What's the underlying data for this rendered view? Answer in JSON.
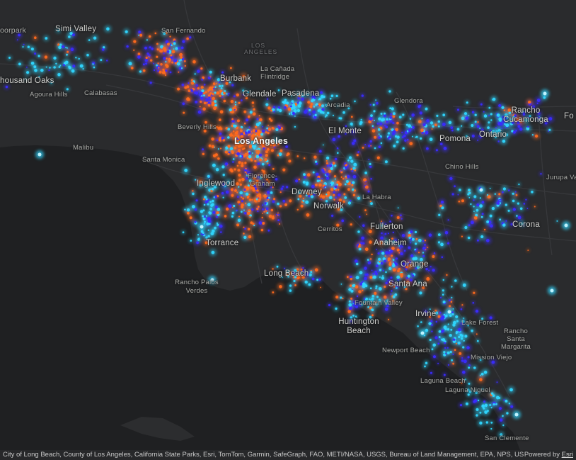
{
  "map": {
    "colors": {
      "ocean": "#1f2022",
      "land": "#2a2b2d",
      "roads": "#3a3b3e",
      "dot_cyan": "#2fd6ff",
      "dot_blue": "#3a2bff",
      "dot_orange": "#ff6a1e"
    },
    "labels": [
      {
        "id": "moorpark",
        "text": "oorpark"
      },
      {
        "id": "simi-valley",
        "text": "Simi Valley"
      },
      {
        "id": "san-fernando",
        "text": "San Fernando"
      },
      {
        "id": "los-angeles-district",
        "text": "LOS ANGELES"
      },
      {
        "id": "thousand-oaks",
        "text": "housand Oaks"
      },
      {
        "id": "burbank",
        "text": "Burbank"
      },
      {
        "id": "la-canada-flintridge",
        "text": "La Cañada Flintridge"
      },
      {
        "id": "agoura-hills",
        "text": "Agoura Hills"
      },
      {
        "id": "calabasas",
        "text": "Calabasas"
      },
      {
        "id": "glendale",
        "text": "Glendale"
      },
      {
        "id": "pasadena",
        "text": "Pasadena"
      },
      {
        "id": "glendora",
        "text": "Glendora"
      },
      {
        "id": "arcadia",
        "text": "Arcadia"
      },
      {
        "id": "rancho-cucamonga",
        "text": "Rancho Cucamonga"
      },
      {
        "id": "fontana",
        "text": "Fo"
      },
      {
        "id": "beverly-hills",
        "text": "Beverly Hills"
      },
      {
        "id": "los-angeles",
        "text": "Los Angeles"
      },
      {
        "id": "el-monte",
        "text": "El Monte"
      },
      {
        "id": "ontario",
        "text": "Ontario"
      },
      {
        "id": "pomona",
        "text": "Pomona"
      },
      {
        "id": "malibu",
        "text": "Malibu"
      },
      {
        "id": "santa-monica",
        "text": "Santa Monica"
      },
      {
        "id": "florence-graham",
        "text": "Florence-Graham"
      },
      {
        "id": "chino-hills",
        "text": "Chino Hills"
      },
      {
        "id": "jurupa-valley",
        "text": "Jurupa Va"
      },
      {
        "id": "inglewood",
        "text": "Inglewood"
      },
      {
        "id": "downey",
        "text": "Downey"
      },
      {
        "id": "la-habra",
        "text": "La Habra"
      },
      {
        "id": "norwalk",
        "text": "Norwalk"
      },
      {
        "id": "fullerton",
        "text": "Fullerton"
      },
      {
        "id": "cerritos",
        "text": "Cerritos"
      },
      {
        "id": "corona",
        "text": "Corona"
      },
      {
        "id": "torrance",
        "text": "Torrance"
      },
      {
        "id": "anaheim",
        "text": "Anaheim"
      },
      {
        "id": "orange",
        "text": "Orange"
      },
      {
        "id": "long-beach",
        "text": "Long Beach"
      },
      {
        "id": "rancho-palos-verdes",
        "text": "Rancho Palos Verdes"
      },
      {
        "id": "santa-ana",
        "text": "Santa Ana"
      },
      {
        "id": "fountain-valley",
        "text": "Fountain Valley"
      },
      {
        "id": "irvine",
        "text": "Irvine"
      },
      {
        "id": "huntington-beach",
        "text": "Huntington Beach"
      },
      {
        "id": "lake-forest",
        "text": "Lake Forest"
      },
      {
        "id": "rancho-santa-margarita",
        "text": "Rancho Santa Margarita"
      },
      {
        "id": "newport-beach",
        "text": "Newport Beach"
      },
      {
        "id": "mission-viejo",
        "text": "Mission Viejo"
      },
      {
        "id": "laguna-beach",
        "text": "Laguna Beach"
      },
      {
        "id": "laguna-niguel",
        "text": "Laguna Niguel"
      },
      {
        "id": "san-clemente",
        "text": "San Clemente"
      }
    ]
  },
  "attribution": {
    "credits": "City of Long Beach, County of Los Angeles, California State Parks, Esri, TomTom, Garmin, SafeGraph, FAO, METI/NASA, USGS, Bureau of Land Management, EPA, NPS, USFWS |...",
    "powered_prefix": "Powered by ",
    "powered_link": "Esri"
  }
}
